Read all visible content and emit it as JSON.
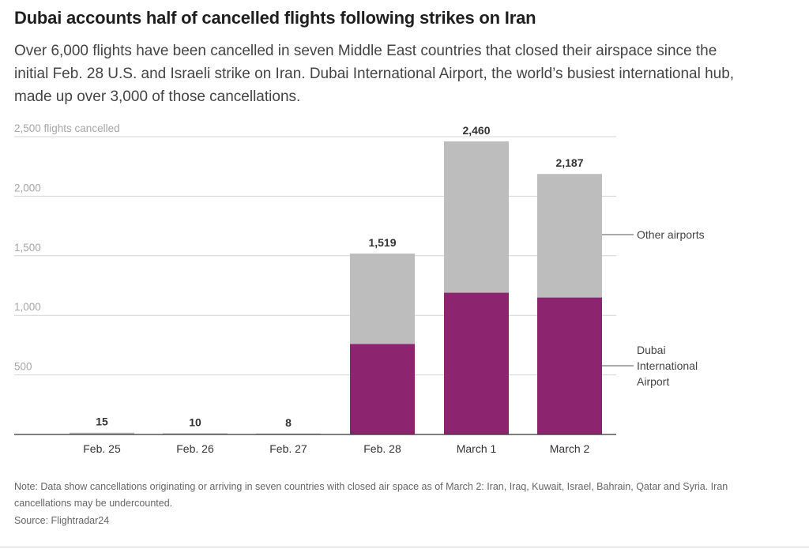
{
  "header": {
    "title": "Dubai accounts half of cancelled flights following strikes on Iran",
    "subtitle": "Over 6,000 flights have been cancelled in seven Middle East countries that closed their airspace since the initial Feb. 28 U.S. and Israeli strike on Iran. Dubai International Airport, the world’s busiest international hub, made up over 3,000 of those cancellations."
  },
  "chart_data": {
    "type": "bar",
    "stacked": true,
    "categories": [
      "Feb. 25",
      "Feb. 26",
      "Feb. 27",
      "Feb. 28",
      "March 1",
      "March 2"
    ],
    "series": [
      {
        "name": "Dubai International Airport",
        "values": [
          0,
          0,
          0,
          760,
          1190,
          1150
        ],
        "color": "#8c2470"
      },
      {
        "name": "Other airports",
        "values": [
          15,
          10,
          8,
          759,
          1270,
          1037
        ],
        "color": "#bdbdbd"
      }
    ],
    "totals": [
      15,
      10,
      8,
      1519,
      2460,
      2187
    ],
    "total_labels": [
      "15",
      "10",
      "8",
      "1,519",
      "2,460",
      "2,187"
    ],
    "y_ticks": [
      {
        "value": 2500,
        "label": "2,500 flights cancelled"
      },
      {
        "value": 2000,
        "label": "2,000"
      },
      {
        "value": 1500,
        "label": "1,500"
      },
      {
        "value": 1000,
        "label": "1,000"
      },
      {
        "value": 500,
        "label": "500"
      }
    ],
    "ylim": [
      0,
      2500
    ],
    "grid": true,
    "legend": {
      "other": "Other airports",
      "dubai_lines": [
        "Dubai",
        "International",
        "Airport"
      ]
    },
    "colors": {
      "dubai": "#8c2470",
      "other": "#bdbdbd",
      "grid": "#d4d4d4",
      "axis": "#333333"
    }
  },
  "footer": {
    "note": "Note: Data show cancellations originating or arriving in seven countries with closed air space as of March 2: Iran, Iraq, Kuwait, Israel, Bahrain, Qatar and Syria. Iran cancellations may be undercounted.",
    "source": "Source: Flightradar24"
  }
}
